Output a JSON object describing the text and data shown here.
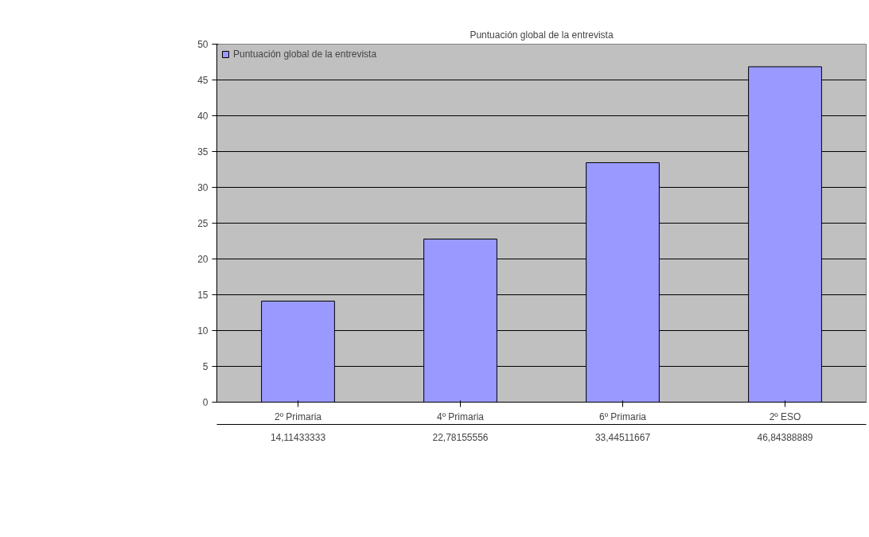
{
  "chart_data": {
    "type": "bar",
    "title": "Puntuación global de la entrevista",
    "categories": [
      "2º Primaria",
      "4º Primaria",
      "6º Primaria",
      "2º ESO"
    ],
    "series": [
      {
        "name": "Puntuación global de la entrevista",
        "color": "#9999ff",
        "values": [
          14.11433333,
          22.78155556,
          33.44511667,
          46.84388889
        ],
        "value_labels": [
          "14,11433333",
          "22,78155556",
          "33,44511667",
          "46,84388889"
        ]
      }
    ],
    "ylim": [
      0,
      50
    ],
    "yticks": [
      0,
      5,
      10,
      15,
      20,
      25,
      30,
      35,
      40,
      45,
      50
    ],
    "grid": "y",
    "legend": "top left"
  }
}
